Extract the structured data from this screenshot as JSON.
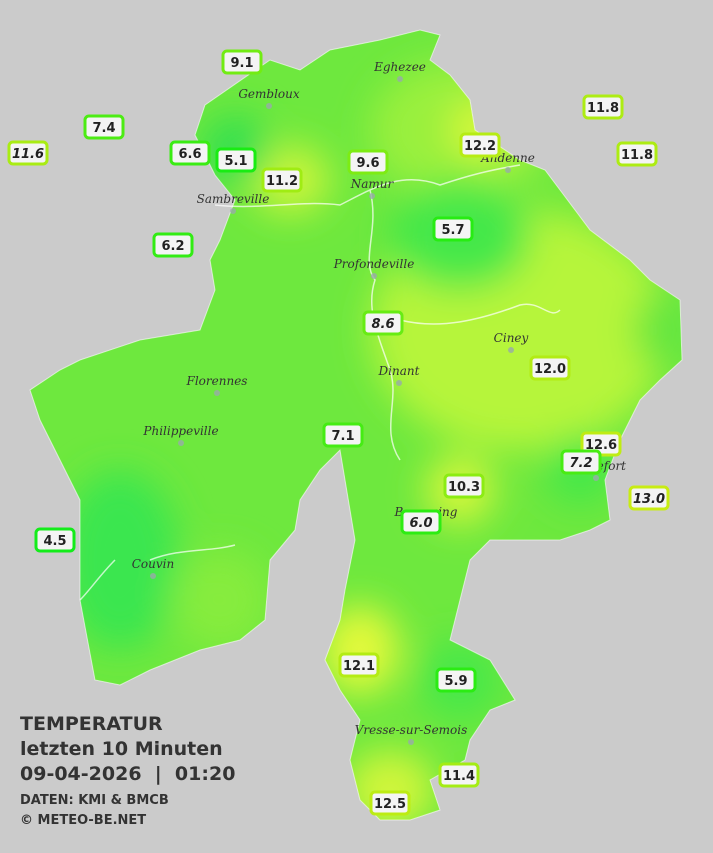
{
  "title": {
    "line1": "TEMPERATUR",
    "line2": "letzten 10 Minuten",
    "line3": "09-04-2026  |  01:20",
    "source": "DATEN: KMI & BMCB",
    "copyright": "© METEO-BE.NET"
  },
  "cities": [
    "Eghezee",
    "Gembloux",
    "Andenne",
    "Namur",
    "Sambreville",
    "Profondeville",
    "Ciney",
    "Florennes",
    "Dinant",
    "Philippeville",
    "Rochefort",
    "Beauraing",
    "Couvin",
    "Vresse-sur-Semois"
  ],
  "stations": [
    {
      "value": "9.1"
    },
    {
      "value": "7.4"
    },
    {
      "value": "11.6",
      "italic": true
    },
    {
      "value": "6.6"
    },
    {
      "value": "5.1"
    },
    {
      "value": "11.2"
    },
    {
      "value": "9.6"
    },
    {
      "value": "12.2"
    },
    {
      "value": "11.8"
    },
    {
      "value": "11.8"
    },
    {
      "value": "6.2"
    },
    {
      "value": "5.7"
    },
    {
      "value": "8.6",
      "italic": true
    },
    {
      "value": "12.0"
    },
    {
      "value": "7.1"
    },
    {
      "value": "12.6"
    },
    {
      "value": "7.2",
      "italic": true
    },
    {
      "value": "13.0",
      "italic": true
    },
    {
      "value": "10.3"
    },
    {
      "value": "6.0",
      "italic": true
    },
    {
      "value": "4.5"
    },
    {
      "value": "12.1"
    },
    {
      "value": "5.9"
    },
    {
      "value": "11.4"
    },
    {
      "value": "12.5"
    }
  ]
}
